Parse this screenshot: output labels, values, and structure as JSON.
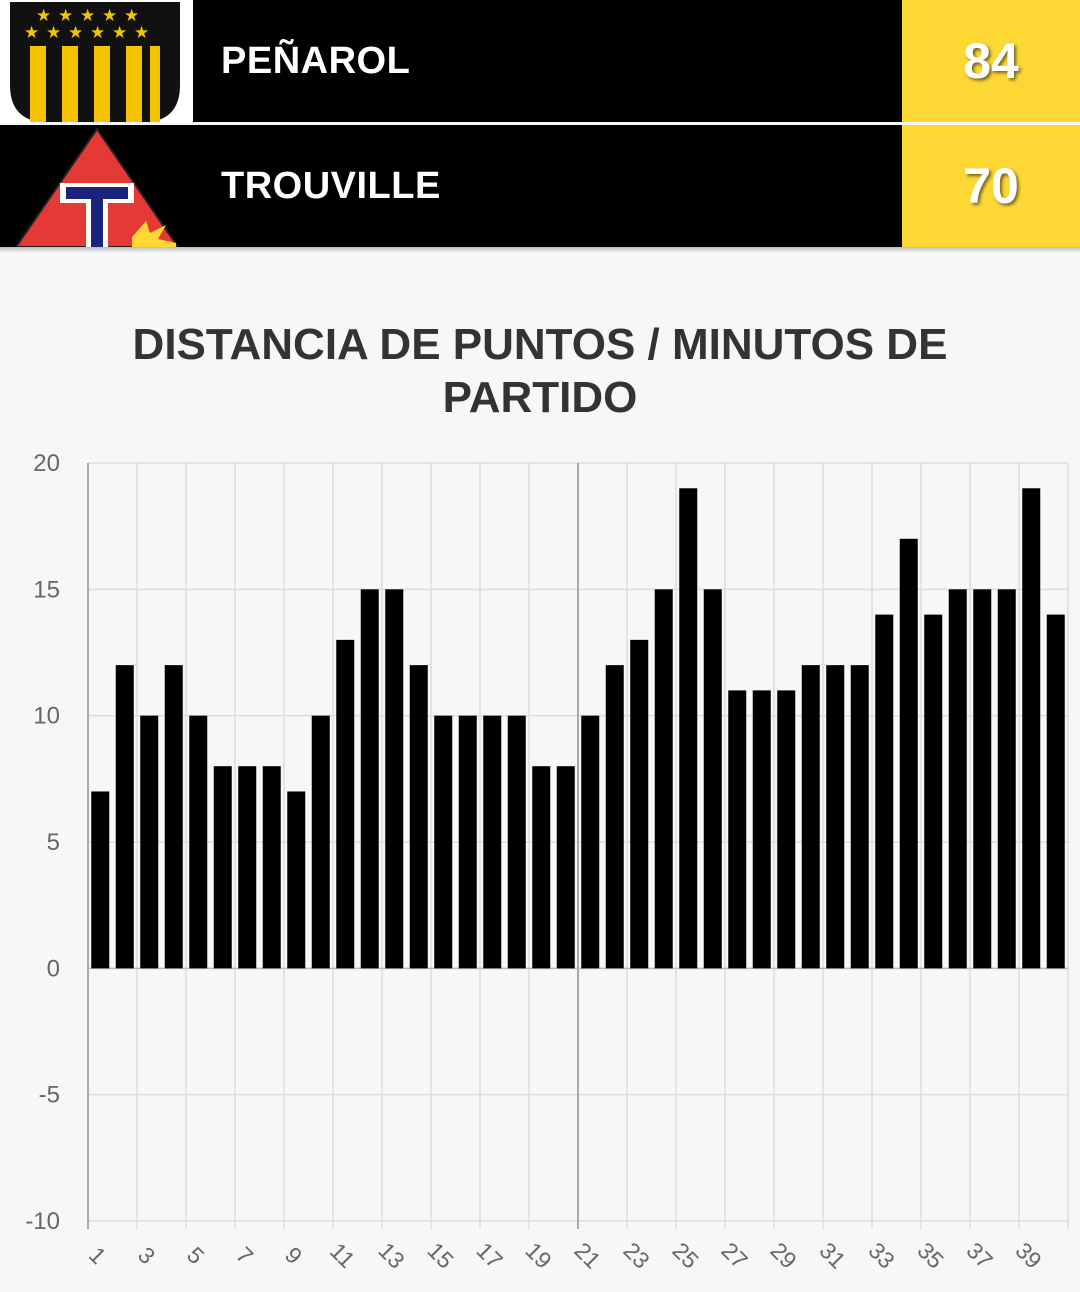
{
  "header": {
    "home": {
      "name": "PEÑAROL",
      "score": "84",
      "logo_icon": "penarol-crest-icon"
    },
    "away": {
      "name": "TROUVILLE",
      "score": "70",
      "logo_icon": "trouville-crest-icon"
    }
  },
  "colors": {
    "header_bg": "#000000",
    "score_bg": "#fdd835",
    "score_text": "#ffffff",
    "bar": "#000000",
    "page_bg": "#f7f7f7"
  },
  "chart_data": {
    "type": "bar",
    "title": "DISTANCIA DE PUNTOS / MINUTOS DE PARTIDO",
    "xlabel": "",
    "ylabel": "",
    "ylim": [
      -10,
      20
    ],
    "yticks": [
      -10,
      -5,
      0,
      5,
      10,
      15,
      20
    ],
    "categories": [
      1,
      2,
      3,
      4,
      5,
      6,
      7,
      8,
      9,
      10,
      11,
      12,
      13,
      14,
      15,
      16,
      17,
      18,
      19,
      20,
      21,
      22,
      23,
      24,
      25,
      26,
      27,
      28,
      29,
      30,
      31,
      32,
      33,
      34,
      35,
      36,
      37,
      38,
      39,
      40
    ],
    "xtick_labels": [
      "1",
      "3",
      "5",
      "7",
      "9",
      "11",
      "13",
      "15",
      "17",
      "19",
      "21",
      "23",
      "25",
      "27",
      "29",
      "31",
      "33",
      "35",
      "37",
      "39"
    ],
    "values": [
      7,
      12,
      10,
      12,
      10,
      8,
      8,
      8,
      7,
      10,
      13,
      15,
      15,
      12,
      10,
      10,
      10,
      10,
      8,
      8,
      10,
      12,
      13,
      15,
      19,
      15,
      11,
      11,
      11,
      12,
      12,
      12,
      14,
      17,
      14,
      15,
      15,
      15,
      19,
      14
    ],
    "grid": true,
    "legend": "none"
  }
}
